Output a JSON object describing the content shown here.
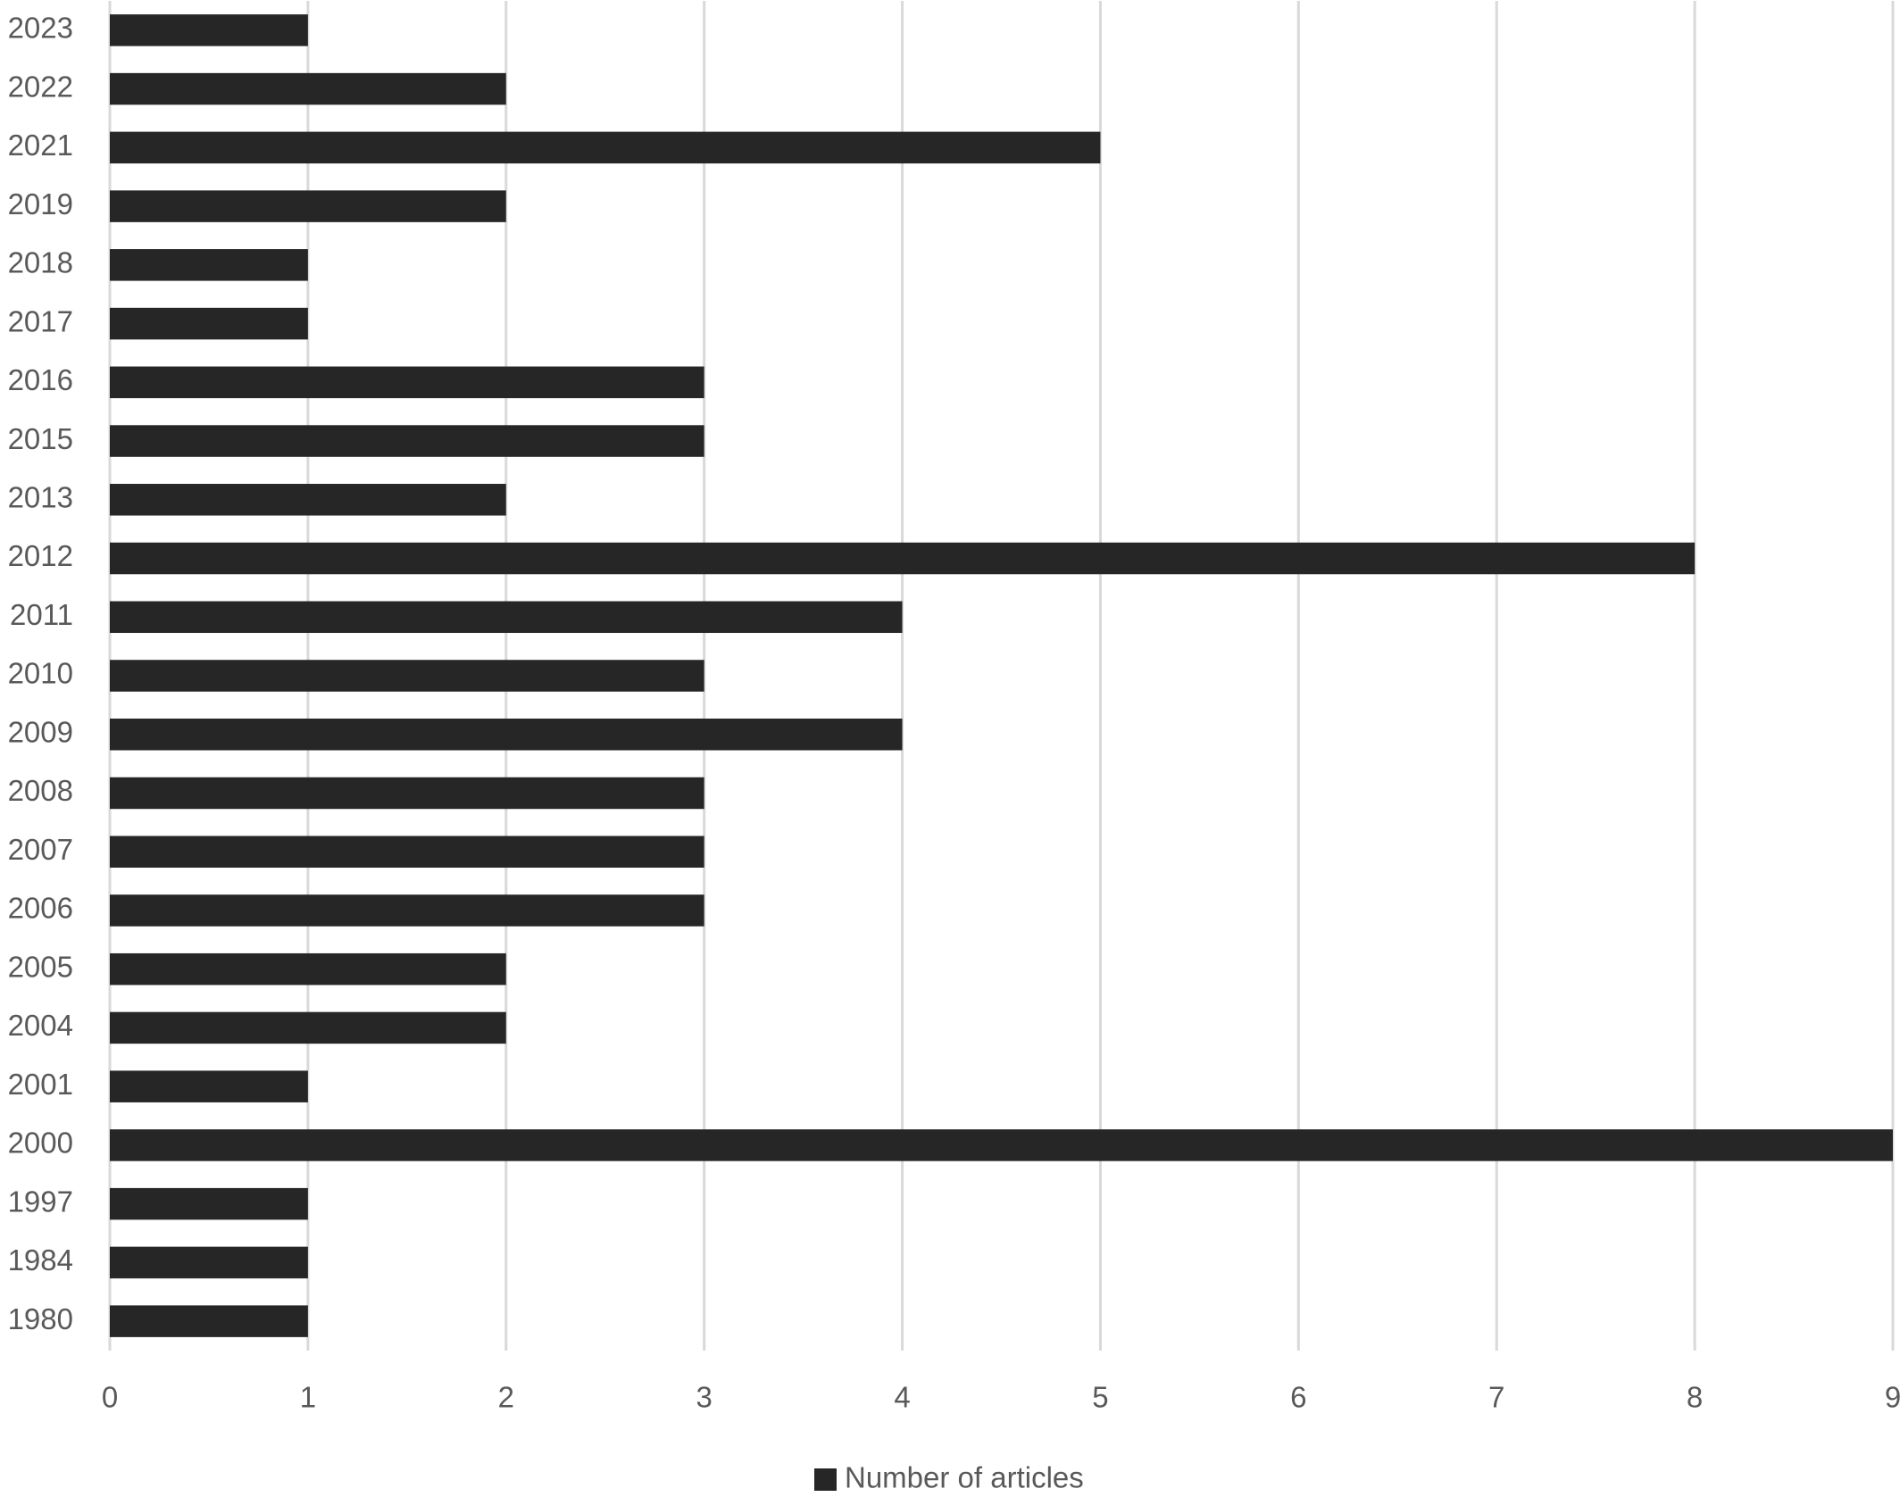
{
  "chart_data": {
    "type": "barh",
    "categories": [
      "2023",
      "2022",
      "2021",
      "2019",
      "2018",
      "2017",
      "2016",
      "2015",
      "2013",
      "2012",
      "2011",
      "2010",
      "2009",
      "2008",
      "2007",
      "2006",
      "2005",
      "2004",
      "2001",
      "2000",
      "1997",
      "1984",
      "1980"
    ],
    "series": [
      {
        "name": "Number of articles",
        "color": "#262626",
        "values": [
          1,
          2,
          5,
          2,
          1,
          1,
          3,
          3,
          2,
          8,
          4,
          3,
          4,
          3,
          3,
          3,
          2,
          2,
          1,
          9,
          1,
          1,
          1
        ]
      }
    ],
    "xlim": [
      0,
      9
    ],
    "xticks": [
      0,
      1,
      2,
      3,
      4,
      5,
      6,
      7,
      8,
      9
    ],
    "grid": true,
    "legend": "bottom"
  }
}
